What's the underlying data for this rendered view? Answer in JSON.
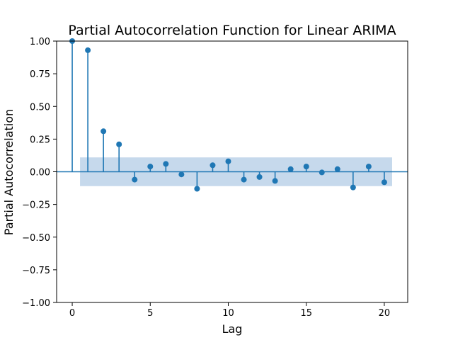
{
  "chart_data": {
    "type": "scatter",
    "subtype": "stem",
    "title": "Partial Autocorrelation Function for Linear ARIMA",
    "xlabel": "Lag",
    "ylabel": "Partial Autocorrelation",
    "xlim": [
      -1,
      21.5
    ],
    "ylim": [
      -1.0,
      1.0
    ],
    "xticks": [
      "0",
      "5",
      "10",
      "15",
      "20"
    ],
    "yticks": [
      "1.00",
      "0.75",
      "0.50",
      "0.25",
      "0.00",
      "−0.25",
      "−0.50",
      "−0.75",
      "−1.00"
    ],
    "grid": false,
    "x": [
      0,
      1,
      2,
      3,
      4,
      5,
      6,
      7,
      8,
      9,
      10,
      11,
      12,
      13,
      14,
      15,
      16,
      17,
      18,
      19,
      20
    ],
    "values": [
      1.0,
      0.93,
      0.31,
      0.21,
      -0.06,
      0.04,
      0.06,
      -0.02,
      -0.13,
      0.05,
      0.08,
      -0.06,
      -0.04,
      -0.07,
      0.02,
      0.04,
      -0.005,
      0.02,
      -0.12,
      0.04,
      -0.08
    ],
    "confidence_band": {
      "x_range": [
        0.5,
        20.5
      ],
      "upper": 0.11,
      "lower": -0.11
    },
    "colors": {
      "stem": "#1f77b4",
      "band": "#c6d9ec"
    }
  }
}
